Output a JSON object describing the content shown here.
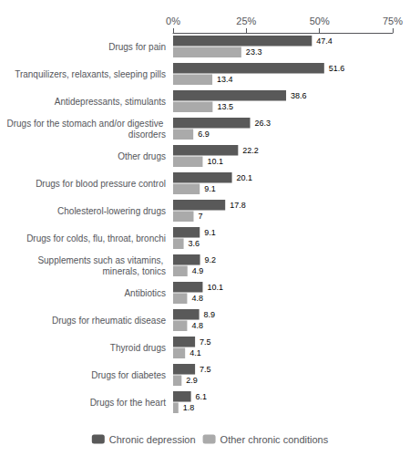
{
  "chart_data": {
    "type": "bar",
    "orientation": "horizontal",
    "categories": [
      "Drugs for pain",
      "Tranquilizers, relaxants, sleeping pills",
      "Antidepressants, stimulants",
      "Drugs for the stomach and/or digestive disorders",
      "Other drugs",
      "Drugs for blood pressure control",
      "Cholesterol-lowering drugs",
      "Drugs for colds, flu, throat, bronchi",
      "Supplements such as vitamins, minerals, tonics",
      "Antibiotics",
      "Drugs for rheumatic disease",
      "Thyroid drugs",
      "Drugs for diabetes",
      "Drugs for the heart"
    ],
    "series": [
      {
        "name": "Chronic depression",
        "color": "#595959",
        "values": [
          47.4,
          51.6,
          38.6,
          26.3,
          22.2,
          20.1,
          17.8,
          9.1,
          9.2,
          10.1,
          8.9,
          7.5,
          7.5,
          6.1
        ]
      },
      {
        "name": "Other chronic conditions",
        "color": "#aaaaaa",
        "values": [
          23.3,
          13.4,
          13.5,
          6.9,
          10.1,
          9.1,
          7.0,
          3.6,
          4.9,
          4.8,
          4.8,
          4.1,
          2.9,
          1.8
        ]
      }
    ],
    "xlim": [
      0,
      75
    ],
    "xticks": [
      {
        "value": 0,
        "label": "0%"
      },
      {
        "value": 25,
        "label": "25%"
      },
      {
        "value": 50,
        "label": "50%"
      },
      {
        "value": 75,
        "label": "75%"
      }
    ],
    "data_labels": true,
    "grid": false,
    "legend": "bottom"
  }
}
